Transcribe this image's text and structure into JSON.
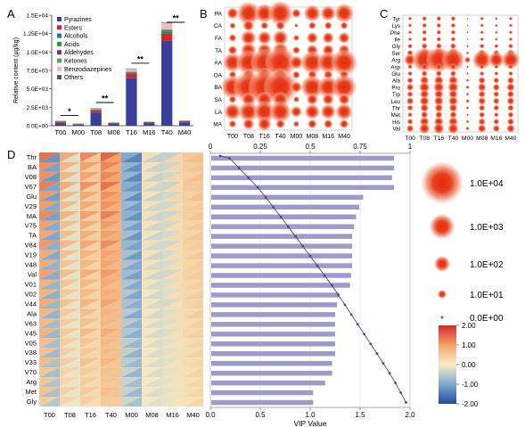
{
  "chart_data": [
    {
      "panel": "A",
      "type": "stacked-bar",
      "ylabel": "Relative content (μg/kg)",
      "categories": [
        "T00",
        "M00",
        "T08",
        "M08",
        "T16",
        "M16",
        "T40",
        "M40"
      ],
      "yticks": [
        "0.0E+00",
        "2.5E+03",
        "5.0E+03",
        "7.5E+03",
        "1.0E+04",
        "1.25E+04",
        "1.5E+04"
      ],
      "ylim": [
        0,
        15000
      ],
      "legend": [
        "Pyrazines",
        "Esters",
        "Alcohols",
        "Acids",
        "Aldehydes",
        "Ketones",
        "Benzodiazepines",
        "Others"
      ],
      "colors": [
        "#3a3f9e",
        "#d62728",
        "#1a7f86",
        "#2ca02c",
        "#7b2d8e",
        "#4daf4a",
        "#f2b8c6",
        "#555555"
      ],
      "series_values": [
        [
          300,
          150,
          1800,
          250,
          6500,
          350,
          11500,
          450
        ],
        [
          180,
          50,
          250,
          80,
          600,
          90,
          1000,
          100
        ],
        [
          50,
          20,
          80,
          30,
          100,
          30,
          250,
          40
        ],
        [
          30,
          10,
          50,
          15,
          50,
          15,
          150,
          20
        ],
        [
          20,
          10,
          30,
          10,
          40,
          10,
          80,
          15
        ],
        [
          20,
          10,
          30,
          10,
          60,
          10,
          100,
          15
        ],
        [
          40,
          20,
          150,
          30,
          350,
          30,
          850,
          40
        ],
        [
          20,
          10,
          30,
          10,
          50,
          10,
          70,
          20
        ]
      ],
      "significance": [
        {
          "pair": [
            "T00",
            "M00"
          ],
          "label": "*"
        },
        {
          "pair": [
            "T08",
            "M08"
          ],
          "label": "**"
        },
        {
          "pair": [
            "T16",
            "M16"
          ],
          "label": "**"
        },
        {
          "pair": [
            "T40",
            "M40"
          ],
          "label": "**"
        }
      ]
    },
    {
      "panel": "B",
      "type": "bubble",
      "rows": [
        "PA",
        "CA",
        "FA",
        "TA",
        "AA",
        "OA",
        "BA",
        "SA",
        "LA",
        "MA"
      ],
      "cols": [
        "T00",
        "T08",
        "T16",
        "T40",
        "M00",
        "M08",
        "M16",
        "M40"
      ],
      "log10_values": [
        [
          1.5,
          3.0,
          2.5,
          3.2,
          1.2,
          2.2,
          2.0,
          2.5
        ],
        [
          0.8,
          1.5,
          1.0,
          1.2,
          0.5,
          1.0,
          1.0,
          1.0
        ],
        [
          1.0,
          2.0,
          1.8,
          2.0,
          0.8,
          1.5,
          1.5,
          1.5
        ],
        [
          1.2,
          2.0,
          1.8,
          2.0,
          1.0,
          1.5,
          1.5,
          1.5
        ],
        [
          2.5,
          3.2,
          3.6,
          4.0,
          1.8,
          3.0,
          2.8,
          3.4
        ],
        [
          1.0,
          1.5,
          1.8,
          1.8,
          1.0,
          1.2,
          1.2,
          1.2
        ],
        [
          3.0,
          4.0,
          4.2,
          4.4,
          1.5,
          3.0,
          2.8,
          3.2
        ],
        [
          1.0,
          1.8,
          2.0,
          2.0,
          0.8,
          1.5,
          1.5,
          1.5
        ],
        [
          2.2,
          2.6,
          2.8,
          2.8,
          1.5,
          2.0,
          2.0,
          2.2
        ],
        [
          1.0,
          1.5,
          1.8,
          1.2,
          0.8,
          1.2,
          1.2,
          1.2
        ]
      ]
    },
    {
      "panel": "C",
      "type": "bubble",
      "rows": [
        "Tyr",
        "Lys",
        "Phe",
        "Ile",
        "Gly",
        "Ser",
        "Arg",
        "Asp",
        "Glu",
        "Ala",
        "Pro",
        "Trp",
        "Leu",
        "Thr",
        "Met",
        "His",
        "Val"
      ],
      "cols": [
        "T00",
        "T08",
        "T16",
        "T40",
        "M00",
        "M08",
        "M16",
        "M40"
      ],
      "log10_values": [
        [
          0.6,
          0.8,
          0.8,
          0.8,
          0.3,
          0.6,
          0.5,
          0.6
        ],
        [
          0.6,
          0.8,
          0.8,
          0.8,
          0.3,
          0.6,
          0.5,
          0.6
        ],
        [
          0.6,
          0.8,
          0.8,
          0.8,
          0.3,
          0.6,
          0.5,
          0.6
        ],
        [
          0.6,
          0.8,
          0.8,
          0.8,
          0.3,
          0.6,
          0.5,
          0.6
        ],
        [
          0.8,
          1.0,
          1.0,
          1.0,
          0.4,
          0.8,
          0.7,
          0.8
        ],
        [
          1.0,
          1.5,
          1.6,
          1.6,
          0.5,
          1.2,
          1.0,
          1.2
        ],
        [
          2.0,
          4.0,
          4.2,
          3.8,
          1.0,
          3.2,
          2.6,
          3.0
        ],
        [
          0.8,
          1.0,
          1.0,
          1.0,
          0.4,
          0.8,
          0.7,
          0.8
        ],
        [
          0.8,
          1.0,
          1.0,
          1.0,
          0.4,
          0.8,
          0.7,
          0.8
        ],
        [
          1.0,
          1.5,
          1.6,
          1.6,
          0.5,
          1.2,
          1.0,
          1.2
        ],
        [
          1.2,
          1.8,
          1.8,
          1.8,
          0.6,
          1.4,
          1.2,
          1.4
        ],
        [
          1.0,
          1.5,
          1.5,
          1.5,
          0.5,
          1.2,
          1.0,
          1.2
        ],
        [
          1.2,
          1.6,
          1.6,
          1.6,
          0.6,
          1.3,
          1.1,
          1.3
        ],
        [
          1.0,
          1.4,
          1.4,
          1.4,
          0.5,
          1.1,
          1.0,
          1.1
        ],
        [
          0.8,
          1.2,
          1.2,
          1.2,
          0.4,
          1.0,
          0.8,
          1.0
        ],
        [
          1.0,
          1.6,
          1.6,
          1.6,
          0.5,
          1.2,
          1.0,
          1.2
        ],
        [
          1.2,
          1.8,
          1.8,
          1.8,
          0.6,
          1.4,
          1.2,
          1.4
        ]
      ]
    },
    {
      "panel": "D",
      "type": "heatmap",
      "rows": [
        "Thr",
        "BA",
        "V08",
        "V67",
        "Glu",
        "V29",
        "MA",
        "V75",
        "TA",
        "V84",
        "V19",
        "V48",
        "Val",
        "V01",
        "V02",
        "V44",
        "Ala",
        "V63",
        "V45",
        "V05",
        "V38",
        "V33",
        "V70",
        "Arg",
        "Met",
        "Gly"
      ],
      "cols": [
        "T00",
        "T08",
        "T16",
        "T40",
        "M00",
        "M08",
        "M16",
        "M40"
      ],
      "scale_ticks": [
        "2.00",
        "1.00",
        "0.00",
        "-1.00",
        "-2.00"
      ],
      "zlim": [
        -2,
        2
      ],
      "pattern_a": [
        1.4,
        0.9,
        1.2,
        1.5,
        -1.0,
        0.2,
        -0.4,
        0.5
      ],
      "pattern_b": [
        -1.2,
        -0.2,
        0.5,
        1.0,
        -1.4,
        -0.4,
        0.3,
        0.6
      ]
    },
    {
      "panel": "D-VIP",
      "type": "bar+line",
      "xlabel": "VIP Value",
      "bottom_ticks": [
        "0.0",
        "0.5",
        "1.0",
        "1.5",
        "2.0"
      ],
      "top_ticks": [
        "0",
        "0.25",
        "0.5",
        "0.75",
        "1"
      ],
      "xlim": [
        0,
        2
      ],
      "vip_values": [
        1.84,
        1.84,
        1.82,
        1.84,
        1.53,
        1.49,
        1.46,
        1.44,
        1.42,
        1.42,
        1.42,
        1.42,
        1.41,
        1.4,
        1.29,
        1.27,
        1.25,
        1.25,
        1.25,
        1.25,
        1.25,
        1.22,
        1.22,
        1.15,
        1.03,
        1.03
      ]
    },
    {
      "panel": "legend",
      "type": "bubble-size-legend",
      "labels": [
        "1.0E+04",
        "1.0E+03",
        "1.0E+02",
        "1.0E+01",
        "0.0E+00"
      ]
    }
  ],
  "panel_labels": [
    "A",
    "B",
    "C",
    "D"
  ]
}
